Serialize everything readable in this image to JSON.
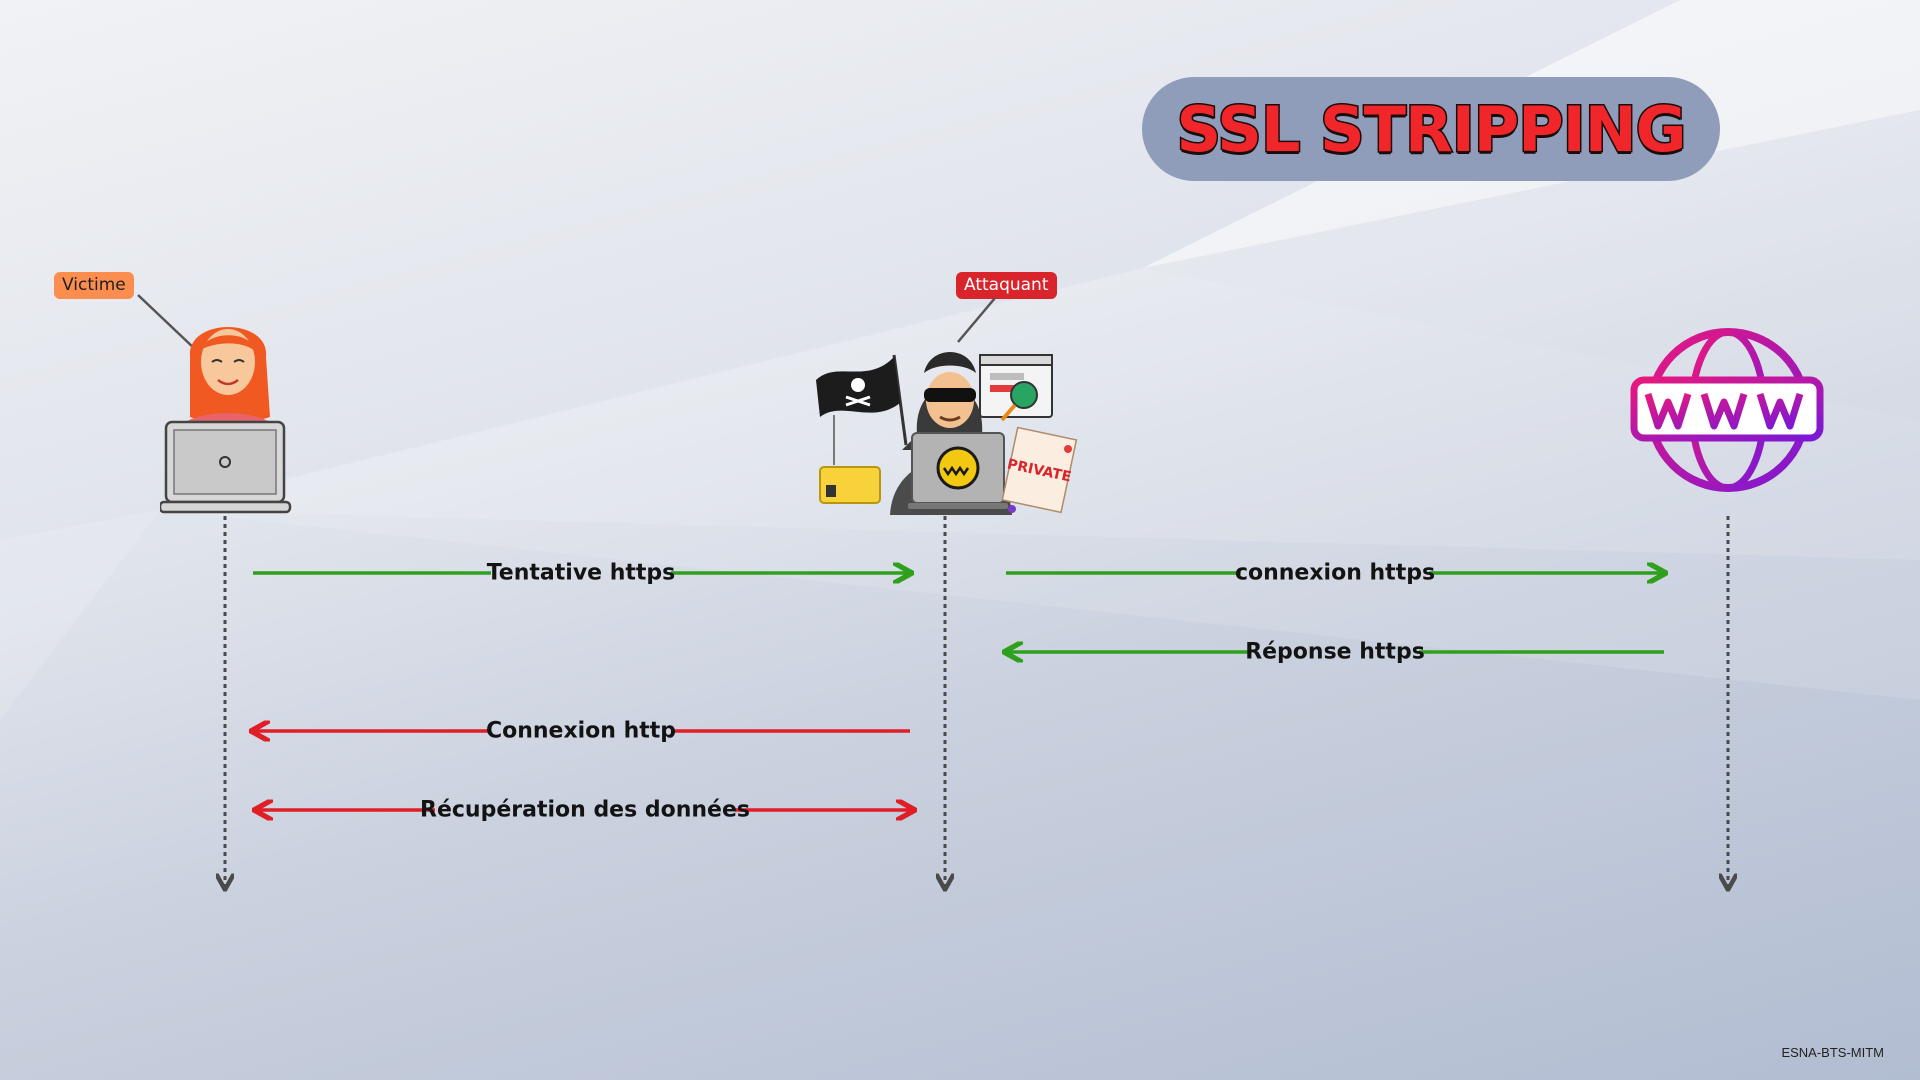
{
  "title": "SSL STRIPPING",
  "actors": {
    "victim": {
      "label": "Victime",
      "icon": "woman-laptop-icon"
    },
    "attacker": {
      "label": "Attaquant",
      "icon": "hacker-icon"
    },
    "server": {
      "label": "WWW",
      "icon": "www-globe-icon"
    }
  },
  "messages": [
    {
      "label": "Tentative https",
      "from": "victim",
      "to": "attacker",
      "color": "#2ea01c"
    },
    {
      "label": "connexion https",
      "from": "attacker",
      "to": "server",
      "color": "#2ea01c"
    },
    {
      "label": "Réponse https",
      "from": "server",
      "to": "attacker",
      "color": "#2ea01c"
    },
    {
      "label": "Connexion http",
      "from": "attacker",
      "to": "victim",
      "color": "#e01e26"
    },
    {
      "label": "Récupération des données",
      "from": "both",
      "to": "both",
      "color": "#e01e26"
    }
  ],
  "card_text": "PRIVATE",
  "footer": "ESNA-BTS-MITM"
}
